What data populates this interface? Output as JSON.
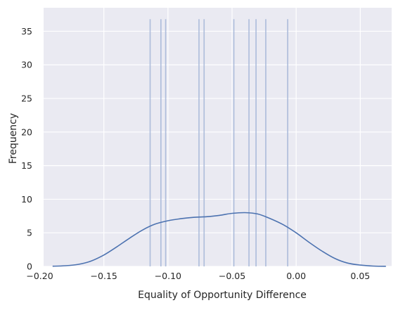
{
  "chart_data": {
    "type": "histogram_kde",
    "xlabel": "Equality of Opportunity Difference",
    "ylabel": "Frequency",
    "xlim": [
      -0.197,
      0.0745
    ],
    "ylim": [
      0,
      38.5
    ],
    "x_ticks": [
      -0.2,
      -0.15,
      -0.1,
      -0.05,
      0.0,
      0.05
    ],
    "x_tick_labels": [
      "−0.20",
      "−0.15",
      "−0.10",
      "−0.05",
      "0.00",
      "0.05"
    ],
    "y_ticks": [
      0,
      5,
      10,
      15,
      20,
      25,
      30,
      35
    ],
    "y_tick_labels": [
      "0",
      "5",
      "10",
      "15",
      "20",
      "25",
      "30",
      "35"
    ],
    "grid": true,
    "background_color": "#eaeaf2",
    "grid_color": "#ffffff",
    "bar_color": "#a9b9d9",
    "line_color": "#4c72b0",
    "histogram": {
      "bin_width": 0.00092,
      "bar_height": 36.8,
      "bar_centers": [
        -0.1139,
        -0.1055,
        -0.1018,
        -0.0758,
        -0.0718,
        -0.0486,
        -0.0368,
        -0.0313,
        -0.0237,
        -0.0066
      ]
    },
    "kde": {
      "x": [
        -0.19,
        -0.18,
        -0.17,
        -0.16,
        -0.15,
        -0.14,
        -0.13,
        -0.12,
        -0.11,
        -0.1,
        -0.09,
        -0.08,
        -0.07,
        -0.06,
        -0.05,
        -0.04,
        -0.03,
        -0.02,
        -0.01,
        0.0,
        0.01,
        0.02,
        0.03,
        0.04,
        0.05,
        0.06,
        0.07
      ],
      "y": [
        0.03,
        0.1,
        0.3,
        0.8,
        1.7,
        2.9,
        4.2,
        5.4,
        6.3,
        6.8,
        7.1,
        7.3,
        7.4,
        7.6,
        7.9,
        8.0,
        7.8,
        7.1,
        6.2,
        5.0,
        3.6,
        2.3,
        1.2,
        0.5,
        0.2,
        0.05,
        0.02
      ]
    }
  }
}
